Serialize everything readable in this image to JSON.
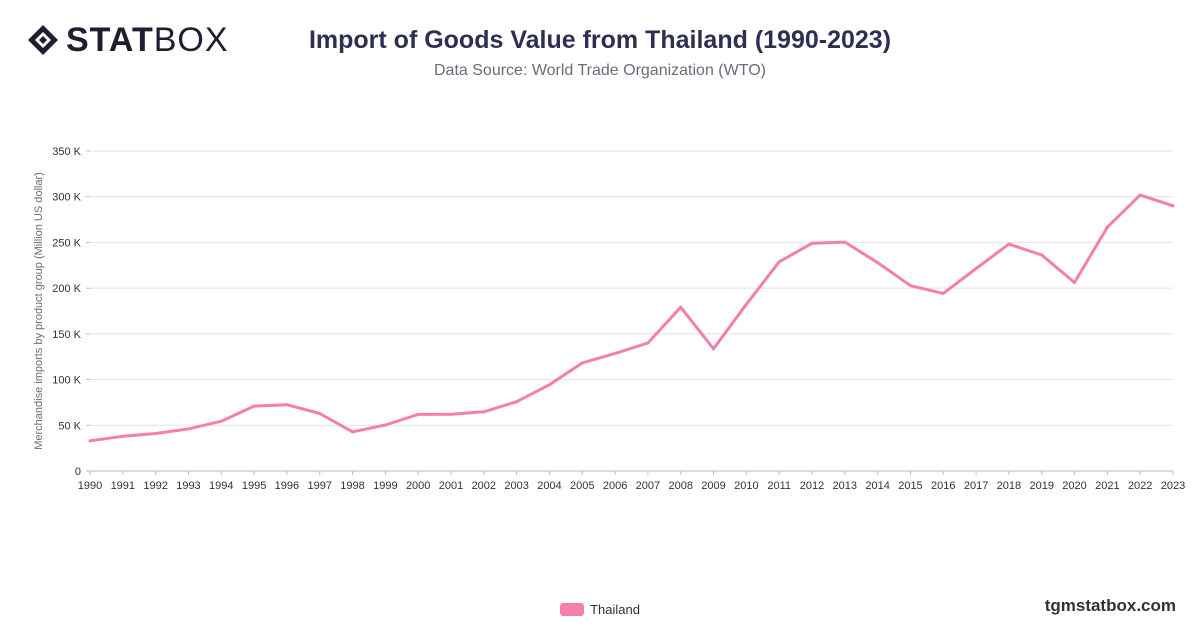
{
  "logo": {
    "bold": "STAT",
    "light": "BOX"
  },
  "header": {
    "title": "Import of Goods Value from Thailand (1990-2023)",
    "subtitle": "Data Source: World Trade Organization (WTO)"
  },
  "brand": "tgmstatbox.com",
  "colors": {
    "series": "#f47fac",
    "grid": "#e2e2e2",
    "axis_text": "#333333"
  },
  "chart_data": {
    "type": "line",
    "ylabel": "Merchandise imports by product group (Million US dollar)",
    "ylim": [
      0,
      350000
    ],
    "yticks": [
      0,
      50000,
      100000,
      150000,
      200000,
      250000,
      300000,
      350000
    ],
    "ytick_labels": [
      "0",
      "50 K",
      "100 K",
      "150 K",
      "200 K",
      "250 K",
      "300 K",
      "350 K"
    ],
    "categories": [
      "1990",
      "1991",
      "1992",
      "1993",
      "1994",
      "1995",
      "1996",
      "1997",
      "1998",
      "1999",
      "2000",
      "2001",
      "2002",
      "2003",
      "2004",
      "2005",
      "2006",
      "2007",
      "2008",
      "2009",
      "2010",
      "2011",
      "2012",
      "2013",
      "2014",
      "2015",
      "2016",
      "2017",
      "2018",
      "2019",
      "2020",
      "2021",
      "2022",
      "2023"
    ],
    "series": [
      {
        "name": "Thailand",
        "values": [
          33000,
          38000,
          41000,
          46000,
          54500,
          71000,
          72500,
          62900,
          42900,
          50300,
          61900,
          62000,
          64700,
          75800,
          94400,
          118200,
          128600,
          140000,
          179200,
          133700,
          182400,
          228800,
          249100,
          250400,
          227900,
          202700,
          194200,
          221500,
          248200,
          236300,
          206200,
          266800,
          301800,
          290100
        ]
      }
    ],
    "legend": "bottom-center",
    "grid": true
  }
}
